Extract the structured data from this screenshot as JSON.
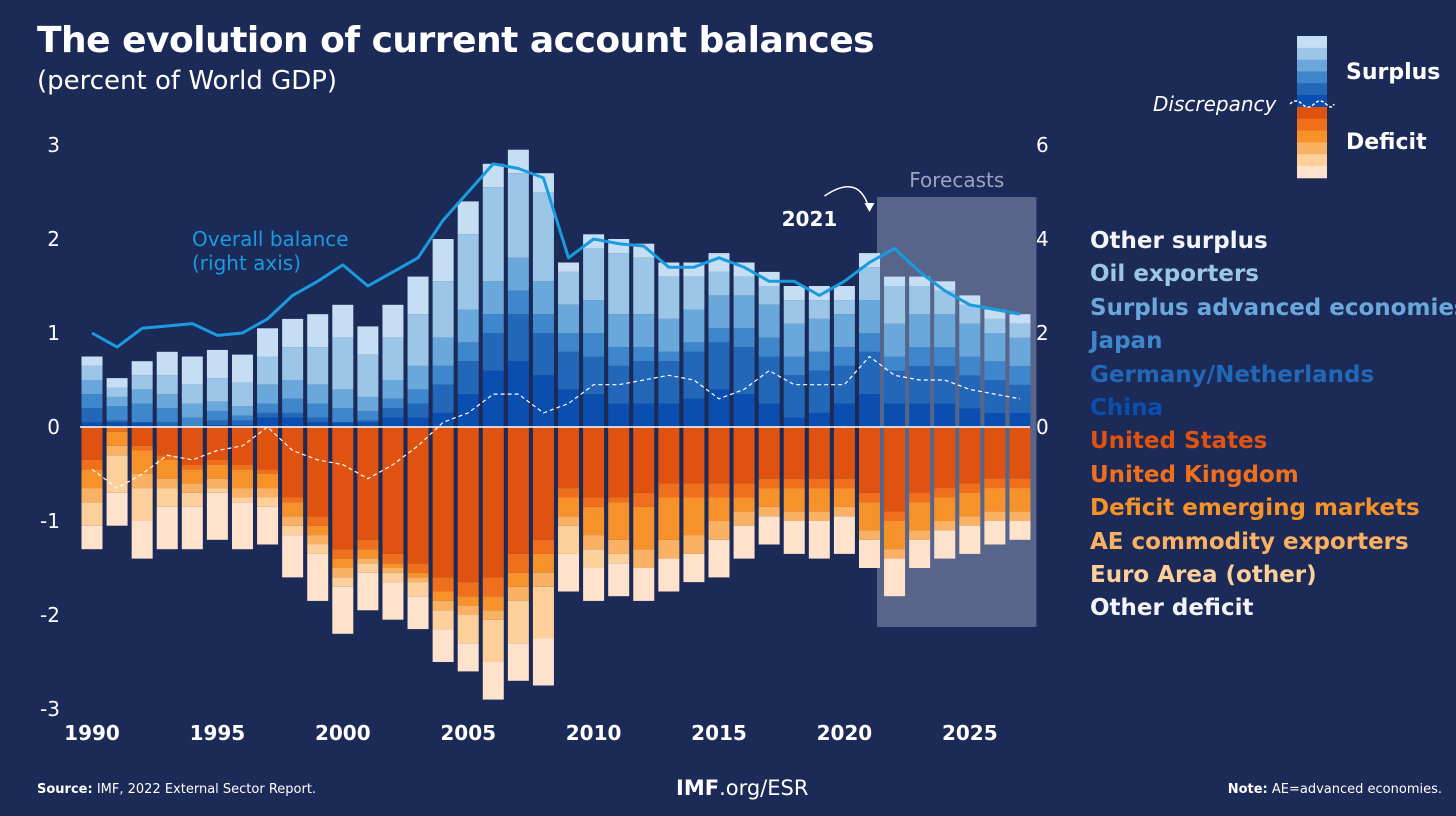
{
  "header": {
    "title": "The evolution of current account balances",
    "subtitle": "(percent of World GDP)"
  },
  "key": {
    "surplus_label": "Surplus",
    "deficit_label": "Deficit",
    "discrepancy_label": "Discrepancy"
  },
  "footer": {
    "source_label": "Source:",
    "source_text": "IMF, 2022 External Sector Report.",
    "site_bold": "IMF",
    "site_rest": ".org/ESR",
    "note_label": "Note:",
    "note_text": "AE=advanced economies."
  },
  "chart_data": {
    "type": "bar",
    "stacked": true,
    "title": "The evolution of current account balances",
    "subtitle": "(percent of World GDP)",
    "x": [
      1990,
      1991,
      1992,
      1993,
      1994,
      1995,
      1996,
      1997,
      1998,
      1999,
      2000,
      2001,
      2002,
      2003,
      2004,
      2005,
      2006,
      2007,
      2008,
      2009,
      2010,
      2011,
      2012,
      2013,
      2014,
      2015,
      2016,
      2017,
      2018,
      2019,
      2020,
      2021,
      2022,
      2023,
      2024,
      2025,
      2026,
      2027
    ],
    "x_tick_labels": [
      "1990",
      "1995",
      "2000",
      "2005",
      "2010",
      "2015",
      "2020",
      "2025"
    ],
    "x_tick_values": [
      1990,
      1995,
      2000,
      2005,
      2010,
      2015,
      2020,
      2025
    ],
    "ylim": [
      -3,
      3
    ],
    "yticks": [
      -3,
      -2,
      -1,
      0,
      1,
      2,
      3
    ],
    "ytick_labels": [
      "-3",
      "-2",
      "-1",
      "0",
      "1",
      "2",
      "3"
    ],
    "y2lim": [
      -6,
      6
    ],
    "y2ticks": [
      0,
      2,
      4,
      6
    ],
    "y2tick_labels": [
      "0",
      "2",
      "4",
      "6"
    ],
    "forecast_start": 2022,
    "forecast_label": "Forecasts",
    "annotations": [
      {
        "text": "Overall balance",
        "text2": "(right axis)"
      },
      {
        "text": "2021",
        "x": 2021
      }
    ],
    "series": [
      {
        "name": "Other surplus",
        "color": "#c6def3",
        "type": "surplus",
        "values": [
          0.1,
          0.1,
          0.15,
          0.25,
          0.3,
          0.3,
          0.3,
          0.3,
          0.3,
          0.35,
          0.35,
          0.3,
          0.35,
          0.4,
          0.45,
          0.35,
          0.25,
          0.25,
          0.2,
          0.1,
          0.15,
          0.15,
          0.15,
          0.15,
          0.15,
          0.2,
          0.15,
          0.15,
          0.15,
          0.15,
          0.15,
          0.15,
          0.1,
          0.1,
          0.1,
          0.1,
          0.1,
          0.1
        ]
      },
      {
        "name": "Oil exporters",
        "color": "#9cc6e7",
        "type": "surplus",
        "values": [
          0.15,
          0.1,
          0.15,
          0.2,
          0.2,
          0.25,
          0.25,
          0.3,
          0.35,
          0.4,
          0.55,
          0.45,
          0.45,
          0.55,
          0.6,
          0.8,
          1.0,
          0.9,
          0.95,
          0.35,
          0.55,
          0.65,
          0.6,
          0.45,
          0.35,
          0.25,
          0.2,
          0.2,
          0.25,
          0.2,
          0.15,
          0.35,
          0.4,
          0.3,
          0.25,
          0.2,
          0.15,
          0.15
        ]
      },
      {
        "name": "Surplus advanced economies",
        "color": "#6aa8db",
        "type": "surplus",
        "values": [
          0.15,
          0.1,
          0.15,
          0.15,
          0.15,
          0.1,
          0.1,
          0.2,
          0.2,
          0.2,
          0.2,
          0.15,
          0.2,
          0.25,
          0.3,
          0.35,
          0.35,
          0.35,
          0.35,
          0.3,
          0.35,
          0.35,
          0.35,
          0.35,
          0.35,
          0.35,
          0.35,
          0.35,
          0.35,
          0.35,
          0.35,
          0.35,
          0.35,
          0.35,
          0.35,
          0.35,
          0.3,
          0.3
        ]
      },
      {
        "name": "Japan",
        "color": "#3f87cc",
        "type": "surplus",
        "values": [
          0.15,
          0.15,
          0.2,
          0.15,
          0.1,
          0.1,
          0.05,
          0.1,
          0.15,
          0.15,
          0.15,
          0.1,
          0.1,
          0.15,
          0.2,
          0.2,
          0.2,
          0.25,
          0.2,
          0.2,
          0.25,
          0.2,
          0.15,
          0.1,
          0.1,
          0.15,
          0.2,
          0.2,
          0.2,
          0.2,
          0.2,
          0.2,
          0.15,
          0.2,
          0.2,
          0.2,
          0.2,
          0.2
        ]
      },
      {
        "name": "Germany/Netherlands",
        "color": "#2367b8",
        "type": "surplus",
        "values": [
          0.15,
          0.02,
          0.0,
          0.05,
          0.0,
          0.05,
          0.05,
          0.05,
          0.05,
          0.05,
          0.0,
          0.02,
          0.1,
          0.15,
          0.3,
          0.35,
          0.4,
          0.5,
          0.45,
          0.4,
          0.4,
          0.4,
          0.45,
          0.45,
          0.5,
          0.5,
          0.5,
          0.5,
          0.45,
          0.45,
          0.4,
          0.45,
          0.35,
          0.4,
          0.4,
          0.35,
          0.35,
          0.3
        ]
      },
      {
        "name": "China",
        "color": "#0a4fb0",
        "type": "surplus",
        "values": [
          0.05,
          0.05,
          0.05,
          0.0,
          0.0,
          0.02,
          0.02,
          0.1,
          0.1,
          0.05,
          0.05,
          0.05,
          0.1,
          0.1,
          0.15,
          0.35,
          0.6,
          0.7,
          0.55,
          0.4,
          0.35,
          0.25,
          0.25,
          0.25,
          0.3,
          0.4,
          0.35,
          0.25,
          0.1,
          0.15,
          0.25,
          0.35,
          0.25,
          0.25,
          0.25,
          0.2,
          0.15,
          0.15
        ]
      },
      {
        "name": "United States",
        "color": "#e0520f",
        "type": "deficit",
        "values": [
          0.35,
          0.0,
          0.2,
          0.3,
          0.4,
          0.35,
          0.4,
          0.45,
          0.75,
          0.95,
          1.3,
          1.2,
          1.35,
          1.45,
          1.6,
          1.65,
          1.6,
          1.35,
          1.2,
          0.65,
          0.75,
          0.75,
          0.7,
          0.6,
          0.6,
          0.6,
          0.6,
          0.55,
          0.55,
          0.55,
          0.55,
          0.7,
          0.9,
          0.7,
          0.65,
          0.6,
          0.55,
          0.55
        ]
      },
      {
        "name": "United Kingdom",
        "color": "#ef6f1d",
        "type": "deficit",
        "values": [
          0.1,
          0.05,
          0.05,
          0.05,
          0.05,
          0.05,
          0.05,
          0.05,
          0.05,
          0.1,
          0.1,
          0.1,
          0.1,
          0.1,
          0.15,
          0.15,
          0.2,
          0.2,
          0.15,
          0.1,
          0.1,
          0.05,
          0.15,
          0.15,
          0.15,
          0.15,
          0.15,
          0.1,
          0.1,
          0.1,
          0.1,
          0.1,
          0.1,
          0.1,
          0.1,
          0.1,
          0.1,
          0.1
        ]
      },
      {
        "name": "Deficit emerging markets",
        "color": "#f7922a",
        "type": "deficit",
        "values": [
          0.2,
          0.15,
          0.25,
          0.2,
          0.15,
          0.15,
          0.2,
          0.15,
          0.15,
          0.1,
          0.1,
          0.1,
          0.05,
          0.05,
          0.1,
          0.1,
          0.15,
          0.15,
          0.2,
          0.2,
          0.3,
          0.4,
          0.45,
          0.45,
          0.4,
          0.25,
          0.15,
          0.2,
          0.25,
          0.25,
          0.2,
          0.3,
          0.3,
          0.3,
          0.25,
          0.25,
          0.25,
          0.25
        ]
      },
      {
        "name": "AE commodity exporters",
        "color": "#fbb164",
        "type": "deficit",
        "values": [
          0.15,
          0.1,
          0.15,
          0.1,
          0.1,
          0.1,
          0.1,
          0.1,
          0.1,
          0.1,
          0.1,
          0.05,
          0.05,
          0.05,
          0.1,
          0.1,
          0.1,
          0.15,
          0.15,
          0.1,
          0.15,
          0.15,
          0.2,
          0.2,
          0.2,
          0.2,
          0.15,
          0.1,
          0.1,
          0.1,
          0.1,
          0.1,
          0.1,
          0.1,
          0.1,
          0.1,
          0.1,
          0.1
        ]
      },
      {
        "name": "Euro Area (other)",
        "color": "#fdcf9b",
        "type": "deficit",
        "values": [
          0.25,
          0.4,
          0.35,
          0.2,
          0.15,
          0.05,
          0.05,
          0.1,
          0.1,
          0.1,
          0.1,
          0.1,
          0.1,
          0.15,
          0.2,
          0.3,
          0.45,
          0.45,
          0.55,
          0.3,
          0.2,
          0.1,
          0.0,
          0.0,
          0.0,
          0.0,
          0.0,
          0.0,
          0.0,
          0.0,
          0.0,
          0.0,
          0.0,
          0.0,
          0.0,
          0.0,
          0.0,
          0.0
        ]
      },
      {
        "name": "Other deficit",
        "color": "#fee2cc",
        "type": "deficit",
        "values": [
          0.25,
          0.35,
          0.4,
          0.45,
          0.45,
          0.5,
          0.5,
          0.4,
          0.45,
          0.5,
          0.5,
          0.4,
          0.4,
          0.35,
          0.35,
          0.3,
          0.4,
          0.4,
          0.5,
          0.4,
          0.35,
          0.35,
          0.35,
          0.35,
          0.3,
          0.4,
          0.35,
          0.3,
          0.35,
          0.4,
          0.4,
          0.3,
          0.4,
          0.3,
          0.3,
          0.3,
          0.25,
          0.2
        ]
      }
    ],
    "overall_balance": {
      "name": "Overall balance",
      "axis": "right",
      "color": "#1a9be0",
      "values": [
        2.0,
        1.7,
        2.1,
        2.15,
        2.2,
        1.95,
        2.0,
        2.3,
        2.8,
        3.1,
        3.45,
        3.0,
        3.3,
        3.6,
        4.4,
        5.0,
        5.6,
        5.5,
        5.3,
        3.6,
        4.0,
        3.9,
        3.85,
        3.4,
        3.4,
        3.6,
        3.4,
        3.1,
        3.1,
        2.8,
        3.1,
        3.5,
        3.8,
        3.3,
        2.9,
        2.6,
        2.5,
        2.4
      ]
    },
    "discrepancy": {
      "name": "Discrepancy",
      "values": [
        -0.45,
        -0.65,
        -0.5,
        -0.3,
        -0.35,
        -0.25,
        -0.2,
        0.0,
        -0.25,
        -0.35,
        -0.4,
        -0.55,
        -0.4,
        -0.2,
        0.05,
        0.15,
        0.35,
        0.35,
        0.15,
        0.25,
        0.45,
        0.45,
        0.5,
        0.55,
        0.5,
        0.3,
        0.4,
        0.6,
        0.45,
        0.45,
        0.45,
        0.75,
        0.55,
        0.5,
        0.5,
        0.4,
        0.35,
        0.3
      ]
    },
    "legend_position": "right",
    "grid": false
  }
}
